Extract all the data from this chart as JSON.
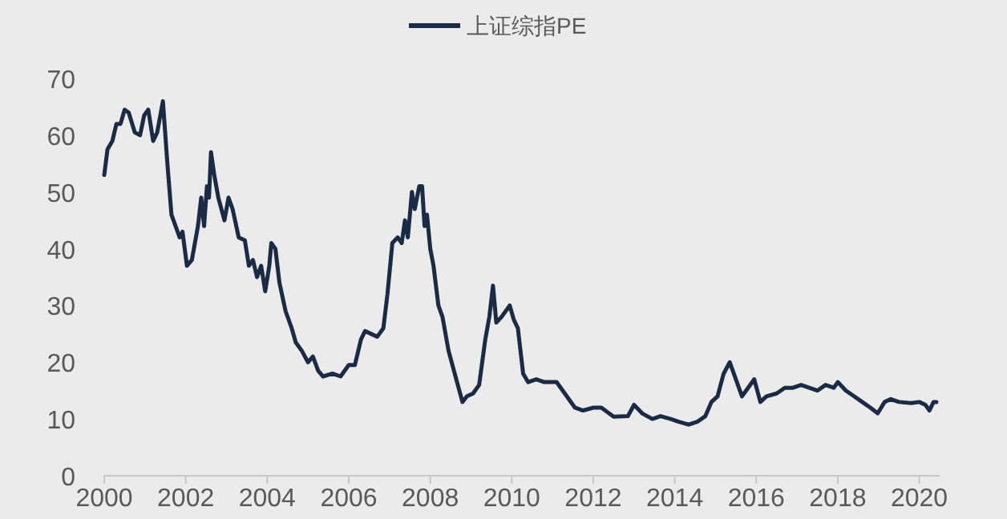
{
  "chart_data": {
    "type": "line",
    "x": [
      2000.0,
      2000.08,
      2000.2,
      2000.3,
      2000.4,
      2000.5,
      2000.6,
      2000.75,
      2000.88,
      2000.98,
      2001.08,
      2001.2,
      2001.3,
      2001.44,
      2001.55,
      2001.65,
      2001.75,
      2001.85,
      2001.92,
      2002.03,
      2002.15,
      2002.3,
      2002.38,
      2002.45,
      2002.52,
      2002.57,
      2002.62,
      2002.7,
      2002.8,
      2002.95,
      2003.05,
      2003.15,
      2003.3,
      2003.45,
      2003.55,
      2003.65,
      2003.75,
      2003.85,
      2003.95,
      2004.05,
      2004.1,
      2004.2,
      2004.3,
      2004.45,
      2004.6,
      2004.7,
      2004.85,
      2005.0,
      2005.12,
      2005.25,
      2005.37,
      2005.6,
      2005.8,
      2006.0,
      2006.15,
      2006.3,
      2006.4,
      2006.55,
      2006.7,
      2006.85,
      2006.95,
      2007.07,
      2007.2,
      2007.3,
      2007.38,
      2007.45,
      2007.55,
      2007.62,
      2007.73,
      2007.8,
      2007.86,
      2007.92,
      2008.0,
      2008.08,
      2008.2,
      2008.3,
      2008.45,
      2008.6,
      2008.79,
      2008.9,
      2009.05,
      2009.2,
      2009.35,
      2009.45,
      2009.54,
      2009.62,
      2009.75,
      2009.95,
      2010.05,
      2010.15,
      2010.28,
      2010.4,
      2010.6,
      2010.8,
      2011.0,
      2011.1,
      2011.35,
      2011.55,
      2011.75,
      2012.0,
      2012.2,
      2012.5,
      2012.85,
      2013.0,
      2013.2,
      2013.45,
      2013.65,
      2013.9,
      2014.1,
      2014.34,
      2014.55,
      2014.75,
      2014.9,
      2015.05,
      2015.2,
      2015.35,
      2015.5,
      2015.65,
      2015.8,
      2015.95,
      2016.1,
      2016.25,
      2016.5,
      2016.7,
      2016.9,
      2017.1,
      2017.3,
      2017.5,
      2017.7,
      2017.9,
      2018.0,
      2018.2,
      2018.4,
      2018.6,
      2018.8,
      2018.98,
      2019.15,
      2019.3,
      2019.5,
      2019.8,
      2020.0,
      2020.15,
      2020.25,
      2020.35,
      2020.42
    ],
    "series": [
      {
        "name": "上证综指PE",
        "color": "#1c2b45",
        "values": [
          53,
          57.5,
          59,
          62,
          62,
          64.5,
          64,
          60.5,
          60,
          63.5,
          64.5,
          59,
          60.5,
          66,
          55,
          46,
          44,
          42,
          43,
          37,
          38,
          44,
          49,
          44,
          51,
          49,
          57,
          53,
          49,
          45,
          49,
          47,
          42,
          41.5,
          37,
          38,
          35,
          37,
          32.5,
          37,
          41,
          40,
          34,
          29,
          26,
          23.5,
          22,
          20,
          21,
          18.5,
          17.5,
          18,
          17.5,
          19.5,
          19.5,
          24,
          25.5,
          25,
          24.5,
          26,
          32,
          41,
          42,
          41,
          45,
          42,
          50,
          47,
          51,
          51,
          44,
          46,
          40,
          37,
          30,
          28,
          22,
          18,
          13,
          14,
          14.5,
          16,
          24,
          28,
          33.5,
          27,
          28,
          30,
          27.5,
          26,
          18,
          16.5,
          17,
          16.5,
          16.5,
          16.5,
          14,
          12,
          11.5,
          12,
          12,
          10.4,
          10.5,
          12.5,
          11,
          10,
          10.5,
          10,
          9.5,
          9,
          9.5,
          10.5,
          13,
          14,
          18,
          20,
          17,
          14,
          15.5,
          17,
          13,
          14,
          14.5,
          15.5,
          15.5,
          16,
          15.5,
          15,
          16,
          15.5,
          16.5,
          15,
          14,
          13,
          12,
          11,
          13,
          13.5,
          13,
          12.8,
          13,
          12.5,
          11.5,
          13,
          13
        ]
      }
    ],
    "xlim": [
      2000,
      2020.5
    ],
    "xticks": [
      2000,
      2002,
      2004,
      2006,
      2008,
      2010,
      2012,
      2014,
      2016,
      2018,
      2020
    ],
    "ylim": [
      0,
      70
    ],
    "yticks": [
      0,
      10,
      20,
      30,
      40,
      50,
      60,
      70
    ],
    "legend": "top",
    "grid": false,
    "marker": "none",
    "line_style": "solid"
  }
}
